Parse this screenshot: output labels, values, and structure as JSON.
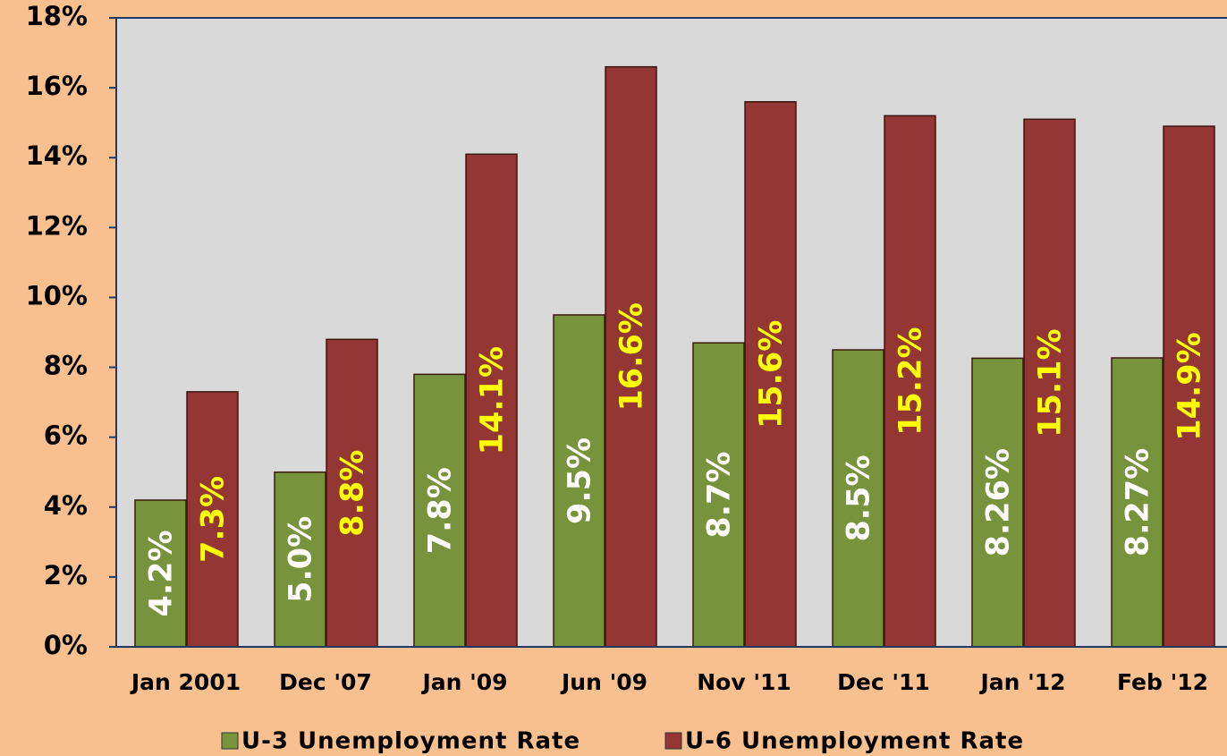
{
  "chart_data": {
    "type": "bar",
    "categories": [
      "Jan 2001",
      "Dec '07",
      "Jan '09",
      "Jun '09",
      "Nov '11",
      "Dec '11",
      "Jan '12",
      "Feb '12"
    ],
    "series": [
      {
        "name": "U-3 Unemployment Rate",
        "color": "#77933c",
        "values": [
          4.2,
          5.0,
          7.8,
          9.5,
          8.7,
          8.5,
          8.26,
          8.27
        ],
        "value_labels": [
          "4.2%",
          "5.0%",
          "7.8%",
          "9.5%",
          "8.7%",
          "8.5%",
          "8.26%",
          "8.27%"
        ]
      },
      {
        "name": "U-6 Unemployment Rate",
        "color": "#943634",
        "values": [
          7.3,
          8.8,
          14.1,
          16.6,
          15.6,
          15.2,
          15.1,
          14.9
        ],
        "value_labels": [
          "7.3%",
          "8.8%",
          "14.1%",
          "16.6%",
          "15.6%",
          "15.2%",
          "15.1%",
          "14.9%"
        ]
      }
    ],
    "ylim": [
      0,
      18
    ],
    "yticks": [
      {
        "value": 0,
        "label": "0%"
      },
      {
        "value": 2,
        "label": "2%"
      },
      {
        "value": 4,
        "label": "4%"
      },
      {
        "value": 6,
        "label": "6%"
      },
      {
        "value": 8,
        "label": "8%"
      },
      {
        "value": 10,
        "label": "10%"
      },
      {
        "value": 12,
        "label": "12%"
      },
      {
        "value": 14,
        "label": "14%"
      },
      {
        "value": 16,
        "label": "16%"
      },
      {
        "value": 18,
        "label": "18%"
      }
    ],
    "legend": "bottom"
  }
}
